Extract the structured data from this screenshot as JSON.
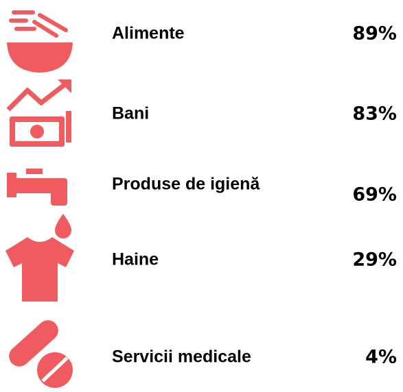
{
  "items": [
    {
      "label": "Alimente",
      "value": "89%"
    },
    {
      "label": "Bani",
      "value": "83%"
    },
    {
      "label": "Produse de igienă",
      "value": "69%"
    },
    {
      "label": "Haine",
      "value": "29%"
    },
    {
      "label": "Servicii medicale",
      "value": "4%"
    }
  ]
}
